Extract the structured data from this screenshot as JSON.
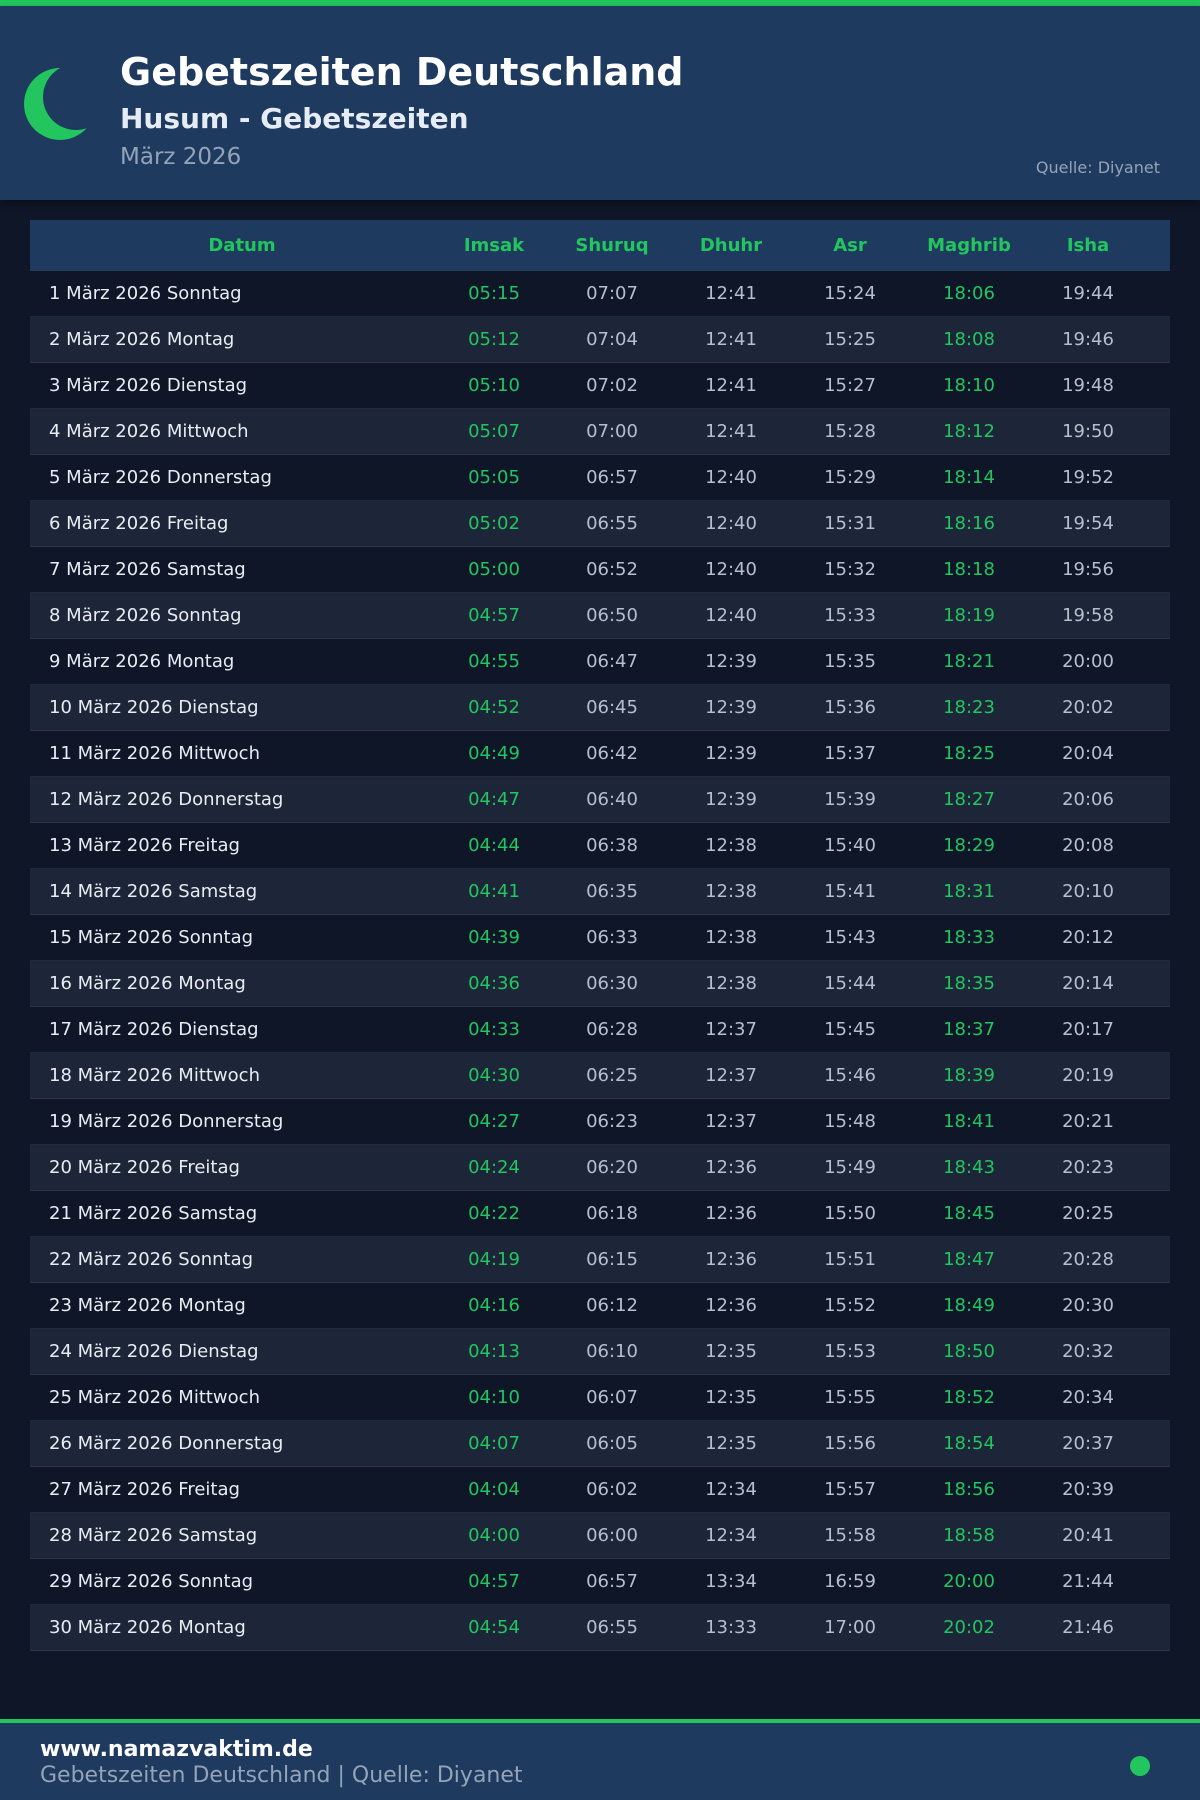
{
  "colors": {
    "accent": "#22c55e",
    "header_bg": "#1f3a5f",
    "page_bg": "#0e1628"
  },
  "header": {
    "icon": "crescent-moon-icon",
    "title": "Gebetszeiten Deutschland",
    "subtitle": "Husum - Gebetszeiten",
    "month": "März 2026",
    "source": "Quelle: Diyanet"
  },
  "table": {
    "columns": [
      "Datum",
      "Imsak",
      "Shuruq",
      "Dhuhr",
      "Asr",
      "Maghrib",
      "Isha"
    ],
    "rows": [
      [
        "1 März 2026 Sonntag",
        "05:15",
        "07:07",
        "12:41",
        "15:24",
        "18:06",
        "19:44"
      ],
      [
        "2 März 2026 Montag",
        "05:12",
        "07:04",
        "12:41",
        "15:25",
        "18:08",
        "19:46"
      ],
      [
        "3 März 2026 Dienstag",
        "05:10",
        "07:02",
        "12:41",
        "15:27",
        "18:10",
        "19:48"
      ],
      [
        "4 März 2026 Mittwoch",
        "05:07",
        "07:00",
        "12:41",
        "15:28",
        "18:12",
        "19:50"
      ],
      [
        "5 März 2026 Donnerstag",
        "05:05",
        "06:57",
        "12:40",
        "15:29",
        "18:14",
        "19:52"
      ],
      [
        "6 März 2026 Freitag",
        "05:02",
        "06:55",
        "12:40",
        "15:31",
        "18:16",
        "19:54"
      ],
      [
        "7 März 2026 Samstag",
        "05:00",
        "06:52",
        "12:40",
        "15:32",
        "18:18",
        "19:56"
      ],
      [
        "8 März 2026 Sonntag",
        "04:57",
        "06:50",
        "12:40",
        "15:33",
        "18:19",
        "19:58"
      ],
      [
        "9 März 2026 Montag",
        "04:55",
        "06:47",
        "12:39",
        "15:35",
        "18:21",
        "20:00"
      ],
      [
        "10 März 2026 Dienstag",
        "04:52",
        "06:45",
        "12:39",
        "15:36",
        "18:23",
        "20:02"
      ],
      [
        "11 März 2026 Mittwoch",
        "04:49",
        "06:42",
        "12:39",
        "15:37",
        "18:25",
        "20:04"
      ],
      [
        "12 März 2026 Donnerstag",
        "04:47",
        "06:40",
        "12:39",
        "15:39",
        "18:27",
        "20:06"
      ],
      [
        "13 März 2026 Freitag",
        "04:44",
        "06:38",
        "12:38",
        "15:40",
        "18:29",
        "20:08"
      ],
      [
        "14 März 2026 Samstag",
        "04:41",
        "06:35",
        "12:38",
        "15:41",
        "18:31",
        "20:10"
      ],
      [
        "15 März 2026 Sonntag",
        "04:39",
        "06:33",
        "12:38",
        "15:43",
        "18:33",
        "20:12"
      ],
      [
        "16 März 2026 Montag",
        "04:36",
        "06:30",
        "12:38",
        "15:44",
        "18:35",
        "20:14"
      ],
      [
        "17 März 2026 Dienstag",
        "04:33",
        "06:28",
        "12:37",
        "15:45",
        "18:37",
        "20:17"
      ],
      [
        "18 März 2026 Mittwoch",
        "04:30",
        "06:25",
        "12:37",
        "15:46",
        "18:39",
        "20:19"
      ],
      [
        "19 März 2026 Donnerstag",
        "04:27",
        "06:23",
        "12:37",
        "15:48",
        "18:41",
        "20:21"
      ],
      [
        "20 März 2026 Freitag",
        "04:24",
        "06:20",
        "12:36",
        "15:49",
        "18:43",
        "20:23"
      ],
      [
        "21 März 2026 Samstag",
        "04:22",
        "06:18",
        "12:36",
        "15:50",
        "18:45",
        "20:25"
      ],
      [
        "22 März 2026 Sonntag",
        "04:19",
        "06:15",
        "12:36",
        "15:51",
        "18:47",
        "20:28"
      ],
      [
        "23 März 2026 Montag",
        "04:16",
        "06:12",
        "12:36",
        "15:52",
        "18:49",
        "20:30"
      ],
      [
        "24 März 2026 Dienstag",
        "04:13",
        "06:10",
        "12:35",
        "15:53",
        "18:50",
        "20:32"
      ],
      [
        "25 März 2026 Mittwoch",
        "04:10",
        "06:07",
        "12:35",
        "15:55",
        "18:52",
        "20:34"
      ],
      [
        "26 März 2026 Donnerstag",
        "04:07",
        "06:05",
        "12:35",
        "15:56",
        "18:54",
        "20:37"
      ],
      [
        "27 März 2026 Freitag",
        "04:04",
        "06:02",
        "12:34",
        "15:57",
        "18:56",
        "20:39"
      ],
      [
        "28 März 2026 Samstag",
        "04:00",
        "06:00",
        "12:34",
        "15:58",
        "18:58",
        "20:41"
      ],
      [
        "29 März 2026 Sonntag",
        "04:57",
        "06:57",
        "13:34",
        "16:59",
        "20:00",
        "21:44"
      ],
      [
        "30 März 2026 Montag",
        "04:54",
        "06:55",
        "13:33",
        "17:00",
        "20:02",
        "21:46"
      ]
    ]
  },
  "footer": {
    "url": "www.namazvaktim.de",
    "text": "Gebetszeiten Deutschland | Quelle: Diyanet"
  }
}
